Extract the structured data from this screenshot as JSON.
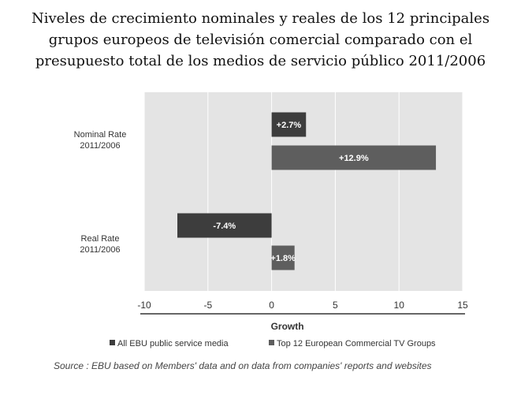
{
  "title_lines": [
    "Niveles de crecimiento nominales y reales de los 12 principales",
    "grupos europeos de televisión comercial comparado con el",
    "presupuesto total de los medios de servicio público 2011/2006"
  ],
  "source": "Source : EBU based on Members' data and on data from companies' reports and websites",
  "colors": {
    "ebu": "#3d3d3d",
    "top12": "#5e5e5e",
    "plot_bg": "#e4e4e4",
    "grid": "#ffffff"
  },
  "chart_data": {
    "type": "bar",
    "orientation": "horizontal",
    "title": "Niveles de crecimiento nominales y reales de los 12 principales grupos europeos de televisión comercial comparado con el presupuesto total de los medios de servicio público 2011/2006",
    "xlabel": "Growth",
    "ylabel": "",
    "xlim": [
      -10,
      15
    ],
    "xticks": [
      "-10",
      "-5",
      "0",
      "5",
      "10",
      "15"
    ],
    "grid": true,
    "legend_position": "bottom",
    "categories": [
      [
        "Nominal Rate",
        "2011/2006"
      ],
      [
        "Real Rate",
        "2011/2006"
      ]
    ],
    "series": [
      {
        "name": "All EBU public service media",
        "values": [
          2.7,
          -7.4
        ],
        "labels": [
          "+2.7%",
          "-7.4%"
        ]
      },
      {
        "name": "Top 12 European Commercial TV Groups",
        "values": [
          12.9,
          1.8
        ],
        "labels": [
          "+12.9%",
          "+1.8%"
        ]
      }
    ]
  }
}
